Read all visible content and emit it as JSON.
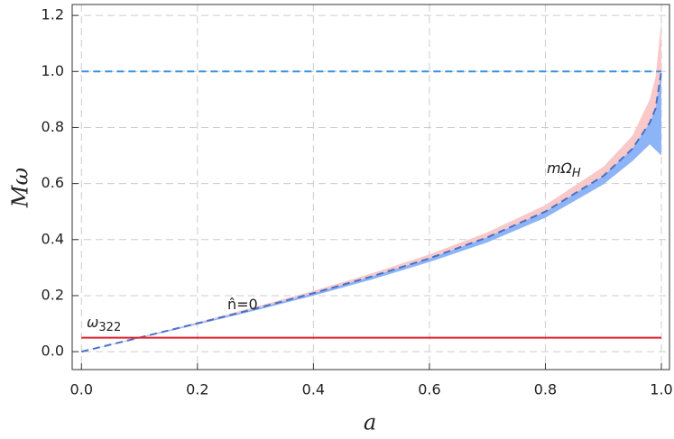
{
  "chart_data": {
    "type": "line",
    "x_label": "a",
    "y_label": "Mω",
    "xlim": [
      -0.016,
      1.014
    ],
    "ylim": [
      -0.064,
      1.239
    ],
    "xticks": [
      {
        "value": 0,
        "label": "0.0"
      },
      0.2,
      0.4,
      0.6,
      0.8,
      {
        "value": 1,
        "label": "1.0"
      }
    ],
    "yticks": [
      {
        "value": 0,
        "label": "0.0"
      },
      0.2,
      0.4,
      0.6,
      0.8,
      {
        "value": 1,
        "label": "1.0"
      },
      1.2
    ],
    "grid": true,
    "series": [
      {
        "kind": "band",
        "color": "#f9c8c8",
        "x": [
          0,
          0.1,
          0.2,
          0.3,
          0.4,
          0.5,
          0.6,
          0.7,
          0.8,
          0.9,
          0.95,
          0.98,
          0.99,
          1.0
        ],
        "lower": [
          0,
          0.0501,
          0.101,
          0.1535,
          0.2087,
          0.268,
          0.333,
          0.408,
          0.5,
          0.627,
          0.724,
          0.817,
          0.868,
          1.0
        ],
        "upper": [
          0,
          0.052,
          0.105,
          0.16,
          0.217,
          0.279,
          0.347,
          0.426,
          0.523,
          0.66,
          0.77,
          0.9,
          0.98,
          1.18
        ]
      },
      {
        "kind": "band",
        "color": "#8db4f7",
        "x": [
          0,
          0.1,
          0.2,
          0.3,
          0.4,
          0.5,
          0.6,
          0.7,
          0.8,
          0.9,
          0.95,
          0.98,
          0.99,
          1.0
        ],
        "lower": [
          0,
          0.048,
          0.097,
          0.147,
          0.2,
          0.257,
          0.32,
          0.39,
          0.478,
          0.597,
          0.68,
          0.74,
          0.72,
          0.7
        ],
        "upper": [
          0,
          0.0501,
          0.101,
          0.1535,
          0.2087,
          0.268,
          0.333,
          0.408,
          0.5,
          0.627,
          0.724,
          0.817,
          0.868,
          1.0
        ]
      },
      {
        "kind": "line",
        "color": "#4a72c4",
        "dashed": true,
        "x": [
          0,
          0.1,
          0.2,
          0.3,
          0.4,
          0.5,
          0.6,
          0.7,
          0.8,
          0.9,
          0.95,
          0.98,
          0.99,
          1.0
        ],
        "values": [
          0,
          0.0501,
          0.101,
          0.1535,
          0.2087,
          0.268,
          0.333,
          0.408,
          0.5,
          0.627,
          0.724,
          0.817,
          0.868,
          1.0
        ]
      },
      {
        "kind": "line",
        "color": "#3a8fdc",
        "dashed": true,
        "x": [
          0,
          1
        ],
        "values": [
          1,
          1
        ]
      },
      {
        "kind": "line",
        "color": "#e0202a",
        "dashed": false,
        "x": [
          0,
          1
        ],
        "values": [
          0.05,
          0.05
        ]
      }
    ],
    "annotations": [
      {
        "text": "ω",
        "sub": "322"
      },
      {
        "text": "n̂=0"
      },
      {
        "text": "mΩ",
        "sub": "H"
      }
    ]
  }
}
